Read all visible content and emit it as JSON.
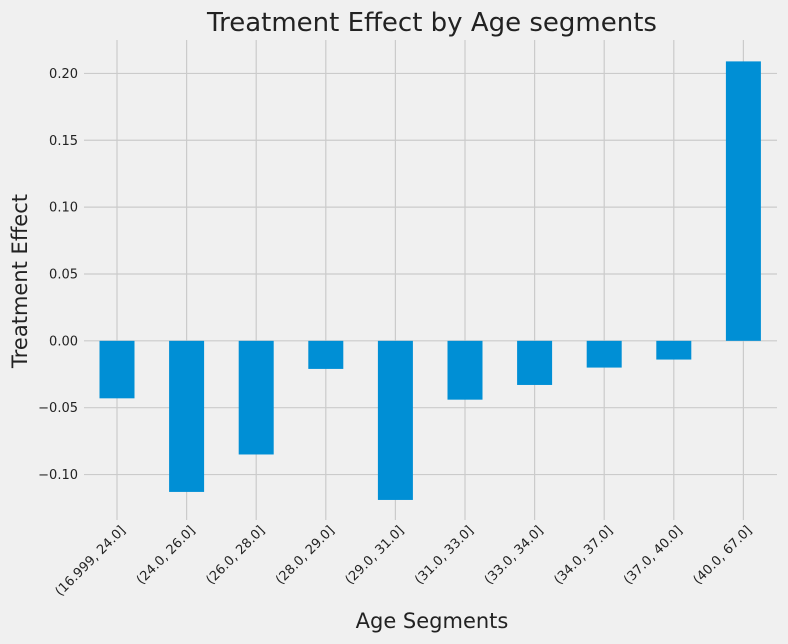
{
  "chart_data": {
    "type": "bar",
    "title": "Treatment Effect by Age segments",
    "xlabel": "Age Segments",
    "ylabel": "Treatment Effect",
    "categories": [
      "(16.999, 24.0]",
      "(24.0, 26.0]",
      "(26.0, 28.0]",
      "(28.0, 29.0]",
      "(29.0, 31.0]",
      "(31.0, 33.0]",
      "(33.0, 34.0]",
      "(34.0, 37.0]",
      "(37.0, 40.0]",
      "(40.0, 67.0]"
    ],
    "values": [
      -0.043,
      -0.113,
      -0.085,
      -0.021,
      -0.119,
      -0.044,
      -0.033,
      -0.02,
      -0.014,
      0.209
    ],
    "yticks": [
      "−0.10",
      "−0.05",
      "0.00",
      "0.05",
      "0.10",
      "0.15",
      "0.20"
    ],
    "ytick_values": [
      -0.1,
      -0.05,
      0.0,
      0.05,
      0.1,
      0.15,
      0.2
    ],
    "ylim": [
      -0.134,
      0.225
    ],
    "grid": true,
    "bar_color": "#008fd5"
  }
}
